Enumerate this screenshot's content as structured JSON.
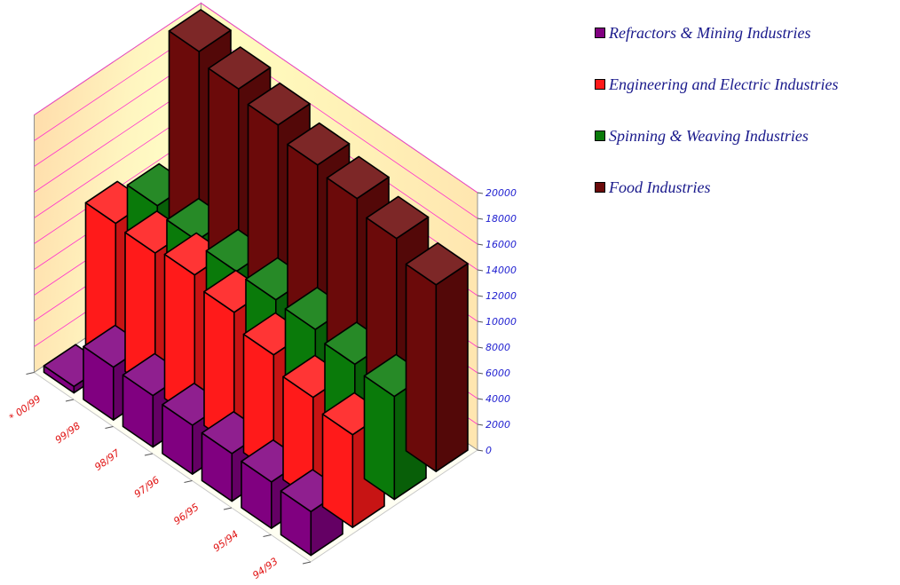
{
  "chart_data": {
    "type": "bar",
    "subtype": "3d-grouped-column",
    "categories": [
      "94/93",
      "95/94",
      "96/95",
      "97/96",
      "98/97",
      "99/98",
      "* 00/99"
    ],
    "series": [
      {
        "name": "Refractors & Mining Industries",
        "color": "#800080",
        "values": [
          3400,
          3600,
          3700,
          3800,
          4000,
          4100,
          500
        ]
      },
      {
        "name": "Engineering and Electric Industries",
        "color": "#ff1a1a",
        "values": [
          7200,
          8000,
          9200,
          10400,
          11200,
          10800,
          11000
        ]
      },
      {
        "name": "Spinning & Weaving Industries",
        "color": "#0a7a0a",
        "values": [
          8000,
          8400,
          9000,
          9200,
          9300,
          9600,
          10200
        ]
      },
      {
        "name": "Food Industries",
        "color": "#6b0a0a",
        "values": [
          14500,
          16000,
          17000,
          17500,
          18500,
          19200,
          20000
        ]
      }
    ],
    "yticks": [
      "0",
      "2000",
      "4000",
      "6000",
      "8000",
      "10000",
      "12000",
      "14000",
      "16000",
      "18000",
      "20000"
    ],
    "ylim": [
      0,
      20000
    ],
    "grid": true,
    "legend_position": "top-right",
    "title": "",
    "xlabel": "",
    "ylabel": ""
  }
}
